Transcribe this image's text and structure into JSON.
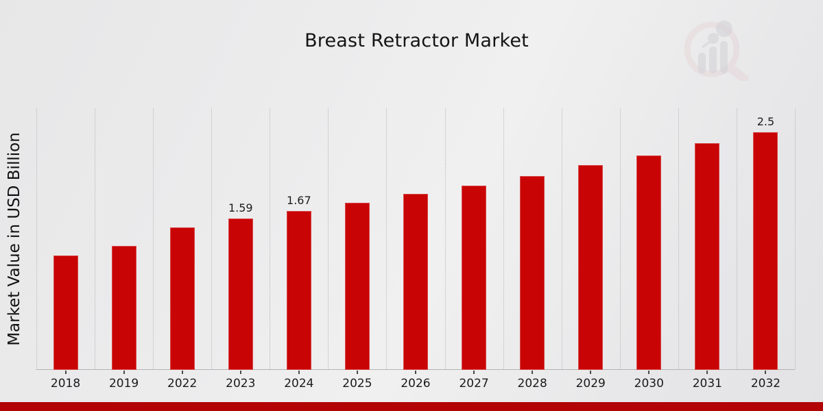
{
  "title": "Breast Retractor Market",
  "y_axis_label": "Market Value in USD Billion",
  "colors": {
    "bar": "#c90404",
    "footer_stripe": "#b20404",
    "grid": "#b8b8b8",
    "axis": "#b3b3b3",
    "title_text": "#141414",
    "label_text": "#1c1c1c",
    "background": "#ebebec",
    "logo_pink": "#d9aeae",
    "logo_gray": "#bcbcc2"
  },
  "logo": {
    "name": "magnifier-bar-chart-watermark"
  },
  "chart_data": {
    "type": "bar",
    "title": "Breast Retractor Market",
    "xlabel": "",
    "ylabel": "Market Value in USD Billion",
    "categories": [
      "2018",
      "2019",
      "2022",
      "2023",
      "2024",
      "2025",
      "2026",
      "2027",
      "2028",
      "2029",
      "2030",
      "2031",
      "2032"
    ],
    "values": [
      1.2,
      1.3,
      1.5,
      1.59,
      1.67,
      1.76,
      1.85,
      1.94,
      2.04,
      2.15,
      2.25,
      2.38,
      2.5
    ],
    "data_labels": [
      "",
      "",
      "",
      "1.59",
      "1.67",
      "",
      "",
      "",
      "",
      "",
      "",
      "",
      "2.5"
    ],
    "ylim": [
      0,
      2.75
    ],
    "y_axis_ticks_visible": false,
    "grid": "vertical-dotted",
    "legend": "none",
    "bar_color": "#c90404"
  }
}
